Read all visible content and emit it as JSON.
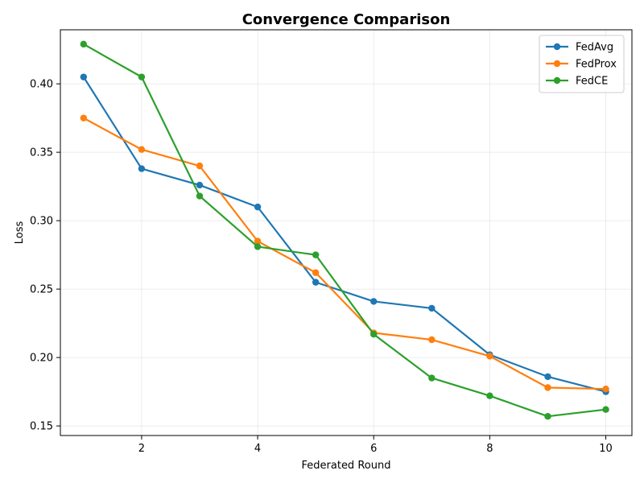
{
  "chart_data": {
    "type": "line",
    "title": "Convergence Comparison",
    "xlabel": "Federated Round",
    "ylabel": "Loss",
    "x": [
      1,
      2,
      3,
      4,
      5,
      6,
      7,
      8,
      9,
      10
    ],
    "xlim": [
      0.6,
      10.45
    ],
    "ylim": [
      0.143,
      0.4395
    ],
    "xticks": [
      2,
      4,
      6,
      8,
      10
    ],
    "yticks": [
      0.15,
      0.2,
      0.25,
      0.3,
      0.35,
      0.4
    ],
    "ytick_labels": [
      "0.15",
      "0.20",
      "0.25",
      "0.30",
      "0.35",
      "0.40"
    ],
    "grid": true,
    "legend_position": "top-right",
    "series": [
      {
        "name": "FedAvg",
        "color": "#1f77b4",
        "values": [
          0.405,
          0.338,
          0.326,
          0.31,
          0.255,
          0.241,
          0.236,
          0.202,
          0.186,
          0.175
        ]
      },
      {
        "name": "FedProx",
        "color": "#ff7f0e",
        "values": [
          0.375,
          0.352,
          0.34,
          0.285,
          0.262,
          0.218,
          0.213,
          0.201,
          0.178,
          0.177
        ]
      },
      {
        "name": "FedCE",
        "color": "#2ca02c",
        "values": [
          0.429,
          0.405,
          0.318,
          0.281,
          0.275,
          0.217,
          0.185,
          0.172,
          0.157,
          0.162
        ]
      }
    ]
  }
}
